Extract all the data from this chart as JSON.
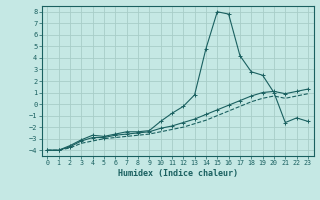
{
  "xlabel": "Humidex (Indice chaleur)",
  "xlim": [
    -0.5,
    23.5
  ],
  "ylim": [
    -4.5,
    8.5
  ],
  "xticks": [
    0,
    1,
    2,
    3,
    4,
    5,
    6,
    7,
    8,
    9,
    10,
    11,
    12,
    13,
    14,
    15,
    16,
    17,
    18,
    19,
    20,
    21,
    22,
    23
  ],
  "yticks": [
    -4,
    -3,
    -2,
    -1,
    0,
    1,
    2,
    3,
    4,
    5,
    6,
    7,
    8
  ],
  "bg_color": "#c5e8e4",
  "grid_color": "#a8cdc8",
  "line_color": "#1a6060",
  "line1_y": [
    -4.0,
    -4.0,
    -3.6,
    -3.1,
    -2.7,
    -2.8,
    -2.6,
    -2.4,
    -2.4,
    -2.3,
    -1.5,
    -0.8,
    -0.2,
    0.8,
    4.8,
    8.0,
    7.8,
    4.2,
    2.8,
    2.5,
    1.0,
    -1.6,
    -1.2,
    -1.5
  ],
  "line2_y": [
    -4.0,
    -4.0,
    -3.7,
    -3.2,
    -2.9,
    -2.9,
    -2.7,
    -2.6,
    -2.5,
    -2.4,
    -2.1,
    -1.9,
    -1.6,
    -1.3,
    -0.9,
    -0.5,
    -0.1,
    0.3,
    0.7,
    1.0,
    1.1,
    0.9,
    1.1,
    1.3
  ],
  "line3_y": [
    -4.0,
    -4.0,
    -3.8,
    -3.4,
    -3.2,
    -3.0,
    -2.9,
    -2.8,
    -2.7,
    -2.6,
    -2.4,
    -2.2,
    -2.0,
    -1.7,
    -1.4,
    -1.0,
    -0.6,
    -0.2,
    0.2,
    0.5,
    0.7,
    0.5,
    0.7,
    0.9
  ]
}
